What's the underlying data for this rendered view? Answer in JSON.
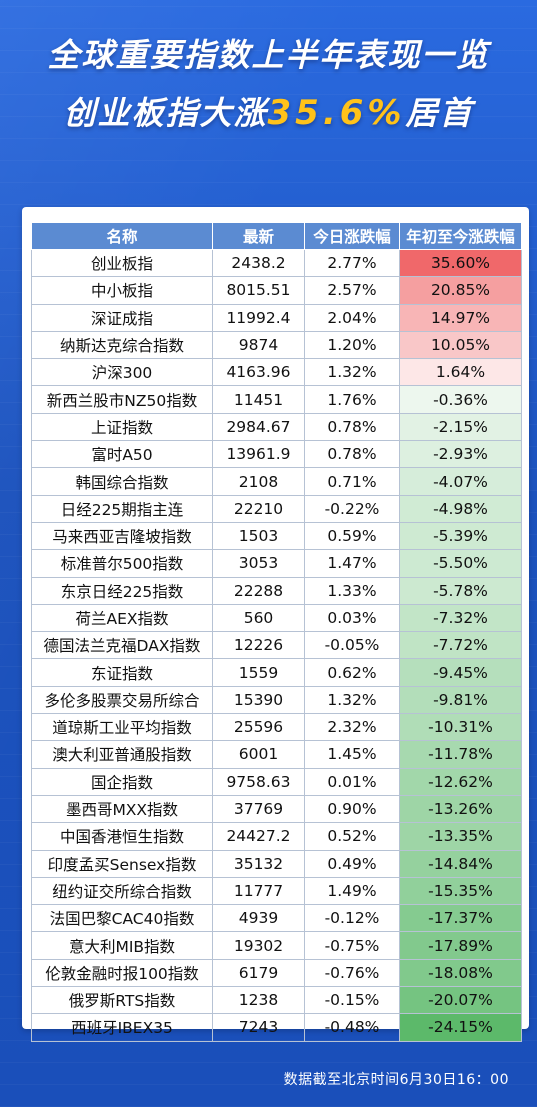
{
  "header": {
    "line1": "全球重要指数上半年表现一览",
    "line2_prefix": "创业板指大涨",
    "line2_highlight": "35.6%",
    "line2_suffix": "居首",
    "highlight_color": "#ffc21a"
  },
  "table": {
    "columns": [
      "名称",
      "最新",
      "今日涨跌幅",
      "年初至今涨跌幅"
    ],
    "rows": [
      {
        "name": "创业板指",
        "latest": "2438.2",
        "today": "2.77%",
        "ytd": "35.60%",
        "ytd_value": 35.6
      },
      {
        "name": "中小板指",
        "latest": "8015.51",
        "today": "2.57%",
        "ytd": "20.85%",
        "ytd_value": 20.85
      },
      {
        "name": "深证成指",
        "latest": "11992.4",
        "today": "2.04%",
        "ytd": "14.97%",
        "ytd_value": 14.97
      },
      {
        "name": "纳斯达克综合指数",
        "latest": "9874",
        "today": "1.20%",
        "ytd": "10.05%",
        "ytd_value": 10.05
      },
      {
        "name": "沪深300",
        "latest": "4163.96",
        "today": "1.32%",
        "ytd": "1.64%",
        "ytd_value": 1.64
      },
      {
        "name": "新西兰股市NZ50指数",
        "latest": "11451",
        "today": "1.76%",
        "ytd": "-0.36%",
        "ytd_value": -0.36
      },
      {
        "name": "上证指数",
        "latest": "2984.67",
        "today": "0.78%",
        "ytd": "-2.15%",
        "ytd_value": -2.15
      },
      {
        "name": "富时A50",
        "latest": "13961.9",
        "today": "0.78%",
        "ytd": "-2.93%",
        "ytd_value": -2.93
      },
      {
        "name": "韩国综合指数",
        "latest": "2108",
        "today": "0.71%",
        "ytd": "-4.07%",
        "ytd_value": -4.07
      },
      {
        "name": "日经225期指主连",
        "latest": "22210",
        "today": "-0.22%",
        "ytd": "-4.98%",
        "ytd_value": -4.98
      },
      {
        "name": "马来西亚吉隆坡指数",
        "latest": "1503",
        "today": "0.59%",
        "ytd": "-5.39%",
        "ytd_value": -5.39
      },
      {
        "name": "标准普尔500指数",
        "latest": "3053",
        "today": "1.47%",
        "ytd": "-5.50%",
        "ytd_value": -5.5
      },
      {
        "name": "东京日经225指数",
        "latest": "22288",
        "today": "1.33%",
        "ytd": "-5.78%",
        "ytd_value": -5.78
      },
      {
        "name": "荷兰AEX指数",
        "latest": "560",
        "today": "0.03%",
        "ytd": "-7.32%",
        "ytd_value": -7.32
      },
      {
        "name": "德国法兰克福DAX指数",
        "latest": "12226",
        "today": "-0.05%",
        "ytd": "-7.72%",
        "ytd_value": -7.72
      },
      {
        "name": "东证指数",
        "latest": "1559",
        "today": "0.62%",
        "ytd": "-9.45%",
        "ytd_value": -9.45
      },
      {
        "name": "多伦多股票交易所综合",
        "latest": "15390",
        "today": "1.32%",
        "ytd": "-9.81%",
        "ytd_value": -9.81
      },
      {
        "name": "道琼斯工业平均指数",
        "latest": "25596",
        "today": "2.32%",
        "ytd": "-10.31%",
        "ytd_value": -10.31
      },
      {
        "name": "澳大利亚普通股指数",
        "latest": "6001",
        "today": "1.45%",
        "ytd": "-11.78%",
        "ytd_value": -11.78
      },
      {
        "name": "国企指数",
        "latest": "9758.63",
        "today": "0.01%",
        "ytd": "-12.62%",
        "ytd_value": -12.62
      },
      {
        "name": "墨西哥MXX指数",
        "latest": "37769",
        "today": "0.90%",
        "ytd": "-13.26%",
        "ytd_value": -13.26
      },
      {
        "name": "中国香港恒生指数",
        "latest": "24427.2",
        "today": "0.52%",
        "ytd": "-13.35%",
        "ytd_value": -13.35
      },
      {
        "name": "印度孟买Sensex指数",
        "latest": "35132",
        "today": "0.49%",
        "ytd": "-14.84%",
        "ytd_value": -14.84
      },
      {
        "name": "纽约证交所综合指数",
        "latest": "11777",
        "today": "1.49%",
        "ytd": "-15.35%",
        "ytd_value": -15.35
      },
      {
        "name": "法国巴黎CAC40指数",
        "latest": "4939",
        "today": "-0.12%",
        "ytd": "-17.37%",
        "ytd_value": -17.37
      },
      {
        "name": "意大利MIB指数",
        "latest": "19302",
        "today": "-0.75%",
        "ytd": "-17.89%",
        "ytd_value": -17.89
      },
      {
        "name": "伦敦金融时报100指数",
        "latest": "6179",
        "today": "-0.76%",
        "ytd": "-18.08%",
        "ytd_value": -18.08
      },
      {
        "name": "俄罗斯RTS指数",
        "latest": "1238",
        "today": "-0.15%",
        "ytd": "-20.07%",
        "ytd_value": -20.07
      },
      {
        "name": "西班牙IBEX35",
        "latest": "7243",
        "today": "-0.48%",
        "ytd": "-24.15%",
        "ytd_value": -24.15
      }
    ],
    "positive_color": "#f0686a",
    "negative_color": "#5cb96a",
    "header_color": "#5b8bd2"
  },
  "footnote": "数据截至北京时间6月30日16：00"
}
